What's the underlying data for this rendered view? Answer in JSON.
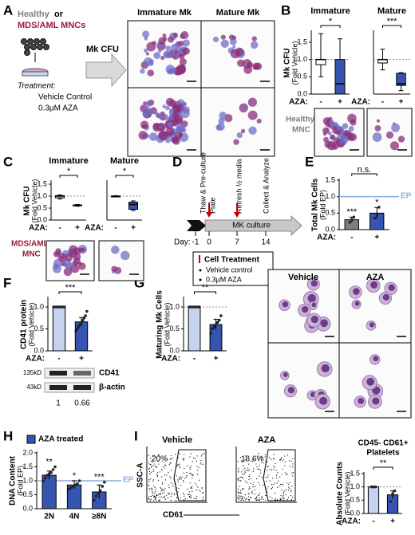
{
  "panels": {
    "A": {
      "label": "A",
      "source": [
        "Healthy",
        "or",
        "MDS/AML MNCs"
      ],
      "treatment": "Treatment:",
      "conditions": [
        "Vehicle Control",
        "0.3μM AZA"
      ],
      "assay": "Mk CFU",
      "columns": [
        "Immature Mk",
        "Mature Mk"
      ]
    },
    "B": {
      "label": "B",
      "image_label": [
        "Healthy",
        "MNC"
      ]
    },
    "C": {
      "label": "C",
      "image_label": [
        "MDS/AML",
        "MNC"
      ]
    },
    "D": {
      "label": "D",
      "steps": [
        "Thaw & Pre-culture",
        "Plate",
        "Refresh ½ media",
        "Collect & Analyze"
      ],
      "bar_label": "MK culture",
      "day_label": "Day:",
      "days": [
        -1,
        0,
        7,
        14
      ],
      "treatment_title": "Cell Treatment",
      "treatments": [
        "Vehicle control",
        "0.3μM AZA"
      ]
    },
    "E": {
      "label": "E"
    },
    "F": {
      "label": "F",
      "blot": {
        "sizes": [
          "135kD",
          "43kD"
        ],
        "proteins": [
          "CD41",
          "β-actin"
        ],
        "quant": [
          1,
          0.66
        ]
      }
    },
    "G": {
      "label": "G",
      "columns": [
        "Vehicle",
        "AZA"
      ]
    },
    "H": {
      "label": "H"
    },
    "I": {
      "label": "I",
      "columns": [
        "Vehicle",
        "AZA"
      ],
      "gates": [
        "20%",
        "18.6%"
      ],
      "y_axis": "SSC-A",
      "x_axis": "CD61"
    }
  },
  "chart_data": [
    {
      "type": "box",
      "title": "Immature",
      "y_label": "Mk CFU",
      "y_sublabel": "(Fold Vehicle)",
      "x_label": "AZA:",
      "categories": [
        "-",
        "+"
      ],
      "ylim": [
        0,
        1.8
      ],
      "yticks": [
        {
          "value": 0,
          "label": "0.0"
        },
        {
          "value": 0.5,
          "label": "0.5"
        },
        {
          "value": 1,
          "label": "1.0"
        },
        {
          "value": 1.5,
          "label": "1.5"
        }
      ],
      "reference_line": {
        "value": 1
      },
      "boxes": [
        {
          "min": 0.5,
          "q1": 0.85,
          "median": 1.0,
          "q3": 1.0,
          "max": 1.75
        },
        {
          "min": 0.0,
          "q1": 0.0,
          "median": 0.3,
          "q3": 1.0,
          "max": 1.6
        }
      ],
      "colors": [
        "#ffffff",
        "#3555b0"
      ],
      "significance": "*"
    },
    {
      "type": "box",
      "title": "Mature",
      "x_label": "AZA:",
      "categories": [
        "-",
        "+"
      ],
      "ylim": [
        0,
        1.8
      ],
      "reference_line": {
        "value": 1
      },
      "boxes": [
        {
          "min": 0.7,
          "q1": 0.9,
          "median": 1.0,
          "q3": 1.0,
          "max": 1.3
        },
        {
          "min": 0.1,
          "q1": 0.25,
          "median": 0.3,
          "q3": 0.6,
          "max": 0.62
        }
      ],
      "colors": [
        "#ffffff",
        "#3555b0"
      ],
      "significance": "***"
    },
    {
      "type": "box",
      "title": "Immature",
      "y_label": "Mk CFU",
      "y_sublabel": "(Fold Vehicle)",
      "x_label": "AZA:",
      "categories": [
        "-",
        "+"
      ],
      "ylim": [
        0,
        1.6
      ],
      "yticks": [
        {
          "value": 0,
          "label": "0.0"
        },
        {
          "value": 0.5,
          "label": "0.5"
        },
        {
          "value": 1,
          "label": "1.0"
        },
        {
          "value": 1.5,
          "label": "1.5"
        }
      ],
      "reference_line": {
        "value": 1
      },
      "boxes": [
        {
          "min": 0.88,
          "q1": 0.93,
          "median": 1.0,
          "q3": 1.02,
          "max": 1.05
        },
        {
          "min": 0.58,
          "q1": 0.6,
          "median": 0.62,
          "q3": 0.63,
          "max": 0.65
        }
      ],
      "colors": [
        "#dfe6f5",
        "#3555b0"
      ],
      "significance": "*"
    },
    {
      "type": "box",
      "title": "Mature",
      "x_label": "AZA:",
      "categories": [
        "-",
        "+"
      ],
      "ylim": [
        0,
        1.6
      ],
      "reference_line": {
        "value": 1
      },
      "boxes": [
        {
          "min": 0.97,
          "q1": 0.99,
          "median": 1.0,
          "q3": 1.0,
          "max": 1.02
        },
        {
          "min": 0.4,
          "q1": 0.45,
          "median": 0.65,
          "q3": 0.75,
          "max": 0.8
        }
      ],
      "colors": [
        "#dfe6f5",
        "#3555b0"
      ],
      "significance": "*"
    },
    {
      "type": "bar",
      "y_label": "Total Mk Cells",
      "y_sublabel": "(Fold EP)",
      "x_label": "AZA:",
      "categories": [
        "-",
        "+"
      ],
      "ylim": [
        0,
        1.5
      ],
      "yticks": [
        {
          "value": 0,
          "label": "0.0"
        },
        {
          "value": 0.5,
          "label": "0.5"
        },
        {
          "value": 1,
          "label": "1.0"
        },
        {
          "value": 1.5,
          "label": "1.5"
        }
      ],
      "reference_line": {
        "value": 1,
        "label": "EP",
        "color": "#8aaee0"
      },
      "values": [
        0.3,
        0.5
      ],
      "errors": [
        0.08,
        0.17
      ],
      "points": [
        [
          0.22,
          0.3,
          0.38
        ],
        [
          0.35,
          0.45,
          0.68
        ]
      ],
      "colors": [
        "#7f7f7f",
        "#3555b0"
      ],
      "bar_labels": [
        "***",
        "*"
      ],
      "significance": "n.s."
    },
    {
      "type": "bar",
      "y_label": "CD41 protein",
      "y_sublabel": "(Fold Vehicle)",
      "x_label": "AZA:",
      "categories": [
        "-",
        "+"
      ],
      "ylim": [
        0,
        1.2
      ],
      "yticks": [
        {
          "value": 0,
          "label": "0.0"
        },
        {
          "value": 0.5,
          "label": "0.5"
        },
        {
          "value": 1,
          "label": "1.0"
        }
      ],
      "values": [
        1,
        0.66
      ],
      "errors": [
        0,
        0.1
      ],
      "points": [
        [
          1,
          1,
          1,
          1,
          1,
          1,
          1,
          1,
          1
        ],
        [
          0.45,
          0.5,
          0.55,
          0.6,
          0.65,
          0.7,
          0.75,
          0.8,
          0.9
        ]
      ],
      "colors": [
        "#c5d3ef",
        "#3555b0"
      ],
      "significance": "***"
    },
    {
      "type": "bar",
      "y_label": "Maturing Mk Cells",
      "y_sublabel": "(Fold Vehicle)",
      "x_label": "AZA:",
      "categories": [
        "-",
        "+"
      ],
      "ylim": [
        0,
        1.2
      ],
      "yticks": [
        {
          "value": 0,
          "label": "0.0"
        },
        {
          "value": 0.5,
          "label": "0.5"
        },
        {
          "value": 1,
          "label": "1.0"
        }
      ],
      "reference_line": {
        "value": 1
      },
      "values": [
        1,
        0.6
      ],
      "errors": [
        0,
        0.12
      ],
      "points": [
        [
          1,
          1,
          1,
          1,
          1,
          1,
          1
        ],
        [
          0.4,
          0.5,
          0.55,
          0.6,
          0.65,
          0.7,
          0.8
        ]
      ],
      "colors": [
        "#c5d3ef",
        "#3555b0"
      ],
      "significance": "**"
    },
    {
      "type": "bar",
      "y_label": "DNA Content",
      "y_sublabel": "(Fold EP)",
      "legend": "AZA treated",
      "categories": [
        "2N",
        "4N",
        "≥8N"
      ],
      "ylim": [
        0,
        2.0
      ],
      "yticks": [
        {
          "value": 0,
          "label": "0.0"
        },
        {
          "value": 0.5,
          "label": "0.5"
        },
        {
          "value": 1,
          "label": "1.0"
        },
        {
          "value": 1.5,
          "label": "1.5"
        },
        {
          "value": 2,
          "label": "2.0"
        }
      ],
      "reference_line": {
        "value": 1,
        "label": "EP",
        "color": "#8aaee0"
      },
      "values": [
        1.2,
        0.85,
        0.6
      ],
      "errors": [
        0.15,
        0.15,
        0.25
      ],
      "points": [
        [
          1.0,
          1.1,
          1.2,
          1.25,
          1.3,
          1.4,
          1.5
        ],
        [
          0.7,
          0.75,
          0.8,
          0.85,
          0.9,
          1.0
        ],
        [
          0.3,
          0.45,
          0.55,
          0.65,
          0.8,
          0.95
        ]
      ],
      "colors": [
        "#3555b0",
        "#3555b0",
        "#3555b0"
      ],
      "bar_labels": [
        "**",
        "*",
        "***"
      ]
    },
    {
      "type": "bar",
      "title": [
        "CD45- CD61+",
        "Platelets"
      ],
      "y_label": "Absolute Counts",
      "y_sublabel": "(Fold Vehicle)",
      "x_label": "AZA:",
      "categories": [
        "-",
        "+"
      ],
      "ylim": [
        0,
        1.5
      ],
      "yticks": [
        {
          "value": 0,
          "label": "0.0"
        },
        {
          "value": 0.5,
          "label": "0.5"
        },
        {
          "value": 1,
          "label": "1.0"
        },
        {
          "value": 1.5,
          "label": "1.5"
        }
      ],
      "reference_line": {
        "value": 1
      },
      "values": [
        1,
        0.7
      ],
      "errors": [
        0,
        0.15
      ],
      "points": [
        [
          1,
          1,
          1
        ],
        [
          0.45,
          0.75,
          0.85
        ]
      ],
      "colors": [
        "#c5d3ef",
        "#3555b0"
      ],
      "significance": "**"
    }
  ]
}
